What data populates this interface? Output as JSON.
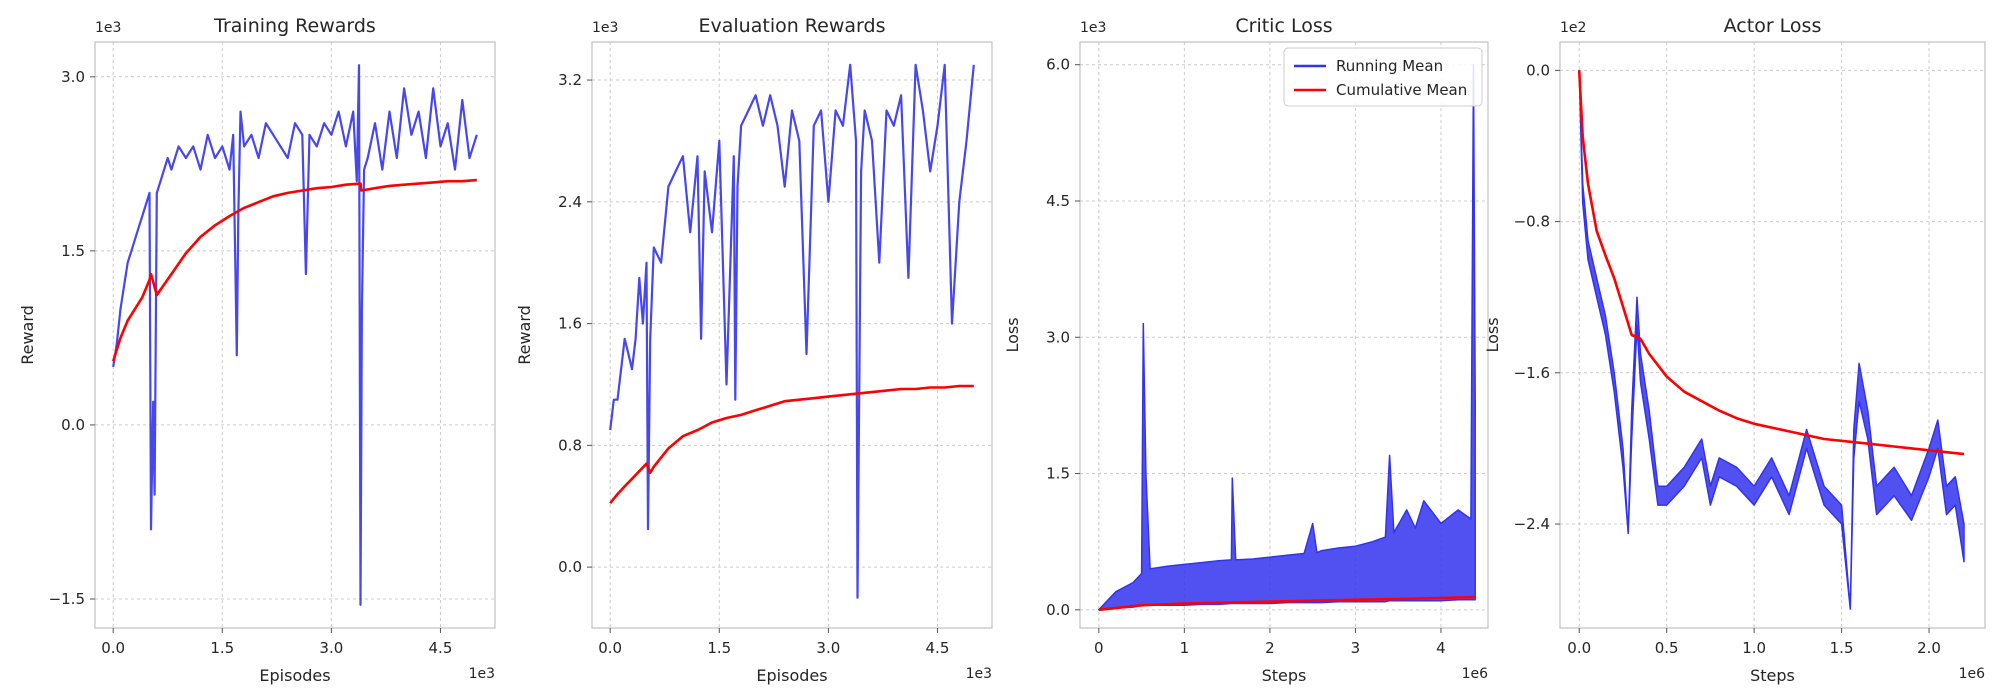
{
  "colors": {
    "running": "#3333ee",
    "cumulative": "#ff0000",
    "grid": "#cccccc",
    "frame": "#c0c0c0"
  },
  "legend": {
    "running": "Running Mean",
    "cumulative": "Cumulative Mean",
    "position": "upper-right of Critic Loss"
  },
  "chart_data": [
    {
      "type": "line",
      "title": "Training Rewards",
      "xlabel": "Episodes",
      "ylabel": "Reward",
      "x_multiplier": "1e3",
      "y_multiplier": "1e3",
      "xlim": [
        -0.25,
        5.25
      ],
      "ylim": [
        -1.75,
        3.3
      ],
      "xticks": [
        0,
        1.5,
        3.0,
        4.5
      ],
      "xtick_labels": [
        "0.0",
        "1.5",
        "3.0",
        "4.5"
      ],
      "yticks": [
        -1.5,
        0,
        1.5,
        3.0
      ],
      "ytick_labels": [
        "−1.5",
        "0.0",
        "1.5",
        "3.0"
      ],
      "grid": true,
      "series": [
        {
          "name": "Running Mean",
          "role": "running",
          "x": [
            0.0,
            0.05,
            0.1,
            0.15,
            0.2,
            0.25,
            0.3,
            0.35,
            0.4,
            0.45,
            0.5,
            0.52,
            0.55,
            0.57,
            0.6,
            0.65,
            0.7,
            0.75,
            0.8,
            0.9,
            1.0,
            1.1,
            1.2,
            1.3,
            1.4,
            1.5,
            1.6,
            1.65,
            1.7,
            1.72,
            1.75,
            1.8,
            1.9,
            2.0,
            2.1,
            2.2,
            2.3,
            2.4,
            2.5,
            2.6,
            2.65,
            2.7,
            2.8,
            2.9,
            3.0,
            3.1,
            3.2,
            3.3,
            3.35,
            3.38,
            3.4,
            3.42,
            3.45,
            3.5,
            3.6,
            3.7,
            3.8,
            3.9,
            4.0,
            4.1,
            4.2,
            4.3,
            4.4,
            4.5,
            4.6,
            4.7,
            4.8,
            4.9,
            5.0
          ],
          "values": [
            0.5,
            0.7,
            1.0,
            1.2,
            1.4,
            1.5,
            1.6,
            1.7,
            1.8,
            1.9,
            2.0,
            -0.9,
            0.2,
            -0.6,
            2.0,
            2.1,
            2.2,
            2.3,
            2.2,
            2.4,
            2.3,
            2.4,
            2.2,
            2.5,
            2.3,
            2.4,
            2.2,
            2.5,
            0.6,
            1.8,
            2.7,
            2.4,
            2.5,
            2.3,
            2.6,
            2.5,
            2.4,
            2.3,
            2.6,
            2.5,
            1.3,
            2.5,
            2.4,
            2.6,
            2.5,
            2.7,
            2.4,
            2.7,
            2.1,
            3.1,
            -1.55,
            1.0,
            2.2,
            2.3,
            2.6,
            2.2,
            2.7,
            2.3,
            2.9,
            2.5,
            2.7,
            2.3,
            2.9,
            2.4,
            2.6,
            2.2,
            2.8,
            2.3,
            2.5
          ]
        },
        {
          "name": "Cumulative Mean",
          "role": "cumulative",
          "x": [
            0.0,
            0.1,
            0.2,
            0.3,
            0.4,
            0.5,
            0.52,
            0.6,
            0.8,
            1.0,
            1.2,
            1.4,
            1.6,
            1.8,
            2.0,
            2.2,
            2.4,
            2.6,
            2.8,
            3.0,
            3.2,
            3.4,
            3.41,
            3.6,
            3.8,
            4.0,
            4.2,
            4.4,
            4.6,
            4.8,
            5.0
          ],
          "values": [
            0.55,
            0.75,
            0.9,
            1.0,
            1.1,
            1.25,
            1.3,
            1.12,
            1.3,
            1.48,
            1.62,
            1.72,
            1.8,
            1.87,
            1.92,
            1.97,
            2.0,
            2.02,
            2.04,
            2.05,
            2.07,
            2.08,
            2.02,
            2.04,
            2.06,
            2.07,
            2.08,
            2.09,
            2.1,
            2.1,
            2.11
          ]
        }
      ]
    },
    {
      "type": "line",
      "title": "Evaluation Rewards",
      "xlabel": "Episodes",
      "ylabel": "Reward",
      "x_multiplier": "1e3",
      "y_multiplier": "1e3",
      "xlim": [
        -0.25,
        5.25
      ],
      "ylim": [
        -0.4,
        3.45
      ],
      "xticks": [
        0,
        1.5,
        3.0,
        4.5
      ],
      "xtick_labels": [
        "0.0",
        "1.5",
        "3.0",
        "4.5"
      ],
      "yticks": [
        0,
        0.8,
        1.6,
        2.4,
        3.2
      ],
      "ytick_labels": [
        "0.0",
        "0.8",
        "1.6",
        "2.4",
        "3.2"
      ],
      "grid": true,
      "series": [
        {
          "name": "Running Mean",
          "role": "running",
          "x": [
            0.0,
            0.05,
            0.1,
            0.15,
            0.2,
            0.25,
            0.3,
            0.35,
            0.4,
            0.45,
            0.5,
            0.52,
            0.55,
            0.6,
            0.7,
            0.8,
            0.9,
            1.0,
            1.1,
            1.2,
            1.25,
            1.3,
            1.4,
            1.5,
            1.6,
            1.7,
            1.72,
            1.75,
            1.8,
            1.9,
            2.0,
            2.1,
            2.2,
            2.3,
            2.4,
            2.5,
            2.6,
            2.7,
            2.8,
            2.9,
            3.0,
            3.1,
            3.2,
            3.3,
            3.38,
            3.4,
            3.45,
            3.5,
            3.6,
            3.7,
            3.8,
            3.9,
            4.0,
            4.1,
            4.2,
            4.3,
            4.4,
            4.5,
            4.6,
            4.7,
            4.8,
            4.9,
            5.0
          ],
          "values": [
            0.9,
            1.1,
            1.1,
            1.3,
            1.5,
            1.4,
            1.3,
            1.5,
            1.9,
            1.6,
            2.0,
            0.25,
            1.5,
            2.1,
            2.0,
            2.5,
            2.6,
            2.7,
            2.2,
            2.7,
            1.5,
            2.6,
            2.2,
            2.8,
            1.2,
            2.7,
            1.1,
            2.5,
            2.9,
            3.0,
            3.1,
            2.9,
            3.1,
            2.9,
            2.5,
            3.0,
            2.8,
            1.4,
            2.9,
            3.0,
            2.4,
            3.0,
            2.9,
            3.3,
            2.8,
            -0.2,
            2.6,
            3.0,
            2.8,
            2.0,
            3.0,
            2.9,
            3.1,
            1.9,
            3.3,
            3.0,
            2.6,
            2.9,
            3.3,
            1.6,
            2.4,
            2.8,
            3.3
          ]
        },
        {
          "name": "Cumulative Mean",
          "role": "cumulative",
          "x": [
            0.0,
            0.1,
            0.2,
            0.3,
            0.4,
            0.5,
            0.55,
            0.6,
            0.8,
            1.0,
            1.2,
            1.4,
            1.6,
            1.8,
            2.0,
            2.2,
            2.4,
            2.6,
            2.8,
            3.0,
            3.2,
            3.4,
            3.6,
            3.8,
            4.0,
            4.2,
            4.4,
            4.6,
            4.8,
            5.0
          ],
          "values": [
            0.42,
            0.48,
            0.53,
            0.58,
            0.63,
            0.68,
            0.62,
            0.66,
            0.78,
            0.86,
            0.9,
            0.95,
            0.98,
            1.0,
            1.03,
            1.06,
            1.09,
            1.1,
            1.11,
            1.12,
            1.13,
            1.14,
            1.15,
            1.16,
            1.17,
            1.17,
            1.18,
            1.18,
            1.19,
            1.19
          ]
        }
      ]
    },
    {
      "type": "line",
      "title": "Critic Loss",
      "xlabel": "Steps",
      "ylabel": "Loss",
      "x_multiplier": "1e6",
      "y_multiplier": "1e3",
      "xlim": [
        -0.22,
        4.55
      ],
      "ylim": [
        -0.2,
        6.25
      ],
      "xticks": [
        0,
        1,
        2,
        3,
        4
      ],
      "xtick_labels": [
        "0",
        "1",
        "2",
        "3",
        "4"
      ],
      "yticks": [
        0,
        1.5,
        3.0,
        4.5,
        6.0
      ],
      "ytick_labels": [
        "0.0",
        "1.5",
        "3.0",
        "4.5",
        "6.0"
      ],
      "grid": true,
      "legend": "upper-right",
      "series": [
        {
          "name": "Running Mean",
          "role": "running",
          "band": true,
          "x": [
            0.0,
            0.2,
            0.4,
            0.5,
            0.52,
            0.55,
            0.6,
            0.8,
            1.0,
            1.2,
            1.4,
            1.55,
            1.56,
            1.6,
            1.8,
            2.0,
            2.2,
            2.4,
            2.5,
            2.55,
            2.6,
            2.8,
            3.0,
            3.2,
            3.35,
            3.4,
            3.45,
            3.6,
            3.7,
            3.8,
            4.0,
            4.2,
            4.35,
            4.38,
            4.4
          ],
          "lower": [
            0.0,
            0.02,
            0.03,
            0.05,
            0.05,
            0.05,
            0.05,
            0.05,
            0.05,
            0.06,
            0.06,
            0.07,
            0.07,
            0.07,
            0.07,
            0.07,
            0.08,
            0.08,
            0.08,
            0.08,
            0.08,
            0.09,
            0.09,
            0.09,
            0.09,
            0.1,
            0.1,
            0.1,
            0.1,
            0.1,
            0.1,
            0.11,
            0.11,
            0.11,
            0.11
          ],
          "values": [
            0.0,
            0.2,
            0.3,
            0.4,
            3.15,
            1.5,
            0.45,
            0.48,
            0.5,
            0.52,
            0.54,
            0.55,
            1.45,
            0.55,
            0.56,
            0.58,
            0.6,
            0.62,
            0.95,
            0.63,
            0.65,
            0.68,
            0.7,
            0.75,
            0.8,
            1.7,
            0.85,
            1.1,
            0.9,
            1.2,
            0.95,
            1.1,
            1.0,
            6.0,
            2.3
          ]
        },
        {
          "name": "Cumulative Mean",
          "role": "cumulative",
          "x": [
            0.0,
            0.5,
            1.0,
            1.5,
            2.0,
            2.5,
            3.0,
            3.5,
            4.0,
            4.4
          ],
          "values": [
            0.0,
            0.05,
            0.07,
            0.08,
            0.09,
            0.1,
            0.11,
            0.12,
            0.13,
            0.14
          ]
        }
      ]
    },
    {
      "type": "line",
      "title": "Actor Loss",
      "xlabel": "Steps",
      "ylabel": "Loss",
      "x_multiplier": "1e6",
      "y_multiplier": "1e2",
      "xlim": [
        -0.11,
        2.32
      ],
      "ylim": [
        -2.95,
        0.15
      ],
      "xticks": [
        0,
        0.5,
        1.0,
        1.5,
        2.0
      ],
      "xtick_labels": [
        "0.0",
        "0.5",
        "1.0",
        "1.5",
        "2.0"
      ],
      "yticks": [
        -2.4,
        -1.6,
        -0.8,
        0
      ],
      "ytick_labels": [
        "−2.4",
        "−1.6",
        "−0.8",
        "0.0"
      ],
      "grid": true,
      "series": [
        {
          "name": "Running Mean",
          "role": "running",
          "band": true,
          "x": [
            0.0,
            0.02,
            0.05,
            0.1,
            0.15,
            0.2,
            0.25,
            0.28,
            0.3,
            0.33,
            0.35,
            0.4,
            0.45,
            0.5,
            0.6,
            0.7,
            0.75,
            0.8,
            0.9,
            1.0,
            1.1,
            1.2,
            1.3,
            1.35,
            1.4,
            1.5,
            1.55,
            1.57,
            1.6,
            1.65,
            1.7,
            1.8,
            1.9,
            2.0,
            2.05,
            2.1,
            2.15,
            2.2
          ],
          "values": [
            0.0,
            -0.6,
            -0.9,
            -1.1,
            -1.3,
            -1.6,
            -2.0,
            -2.45,
            -1.8,
            -1.2,
            -1.5,
            -1.8,
            -2.2,
            -2.2,
            -2.1,
            -1.95,
            -2.2,
            -2.05,
            -2.1,
            -2.2,
            -2.05,
            -2.25,
            -1.9,
            -2.05,
            -2.2,
            -2.3,
            -2.85,
            -1.9,
            -1.55,
            -1.8,
            -2.2,
            -2.1,
            -2.25,
            -2.0,
            -1.85,
            -2.2,
            -2.15,
            -2.4
          ],
          "lower": [
            0.0,
            -0.7,
            -1.0,
            -1.2,
            -1.4,
            -1.7,
            -2.1,
            -2.45,
            -1.95,
            -1.35,
            -1.65,
            -1.95,
            -2.3,
            -2.3,
            -2.2,
            -2.05,
            -2.3,
            -2.15,
            -2.2,
            -2.3,
            -2.15,
            -2.35,
            -2.0,
            -2.15,
            -2.3,
            -2.4,
            -2.85,
            -2.05,
            -1.75,
            -1.95,
            -2.35,
            -2.25,
            -2.38,
            -2.15,
            -2.0,
            -2.35,
            -2.3,
            -2.6
          ]
        },
        {
          "name": "Cumulative Mean",
          "role": "cumulative",
          "x": [
            0.0,
            0.02,
            0.05,
            0.1,
            0.15,
            0.2,
            0.25,
            0.3,
            0.35,
            0.4,
            0.5,
            0.6,
            0.7,
            0.8,
            0.9,
            1.0,
            1.2,
            1.4,
            1.6,
            1.8,
            2.0,
            2.2
          ],
          "values": [
            0.0,
            -0.35,
            -0.6,
            -0.85,
            -0.98,
            -1.1,
            -1.25,
            -1.4,
            -1.42,
            -1.5,
            -1.62,
            -1.7,
            -1.75,
            -1.8,
            -1.84,
            -1.87,
            -1.91,
            -1.95,
            -1.97,
            -1.99,
            -2.01,
            -2.03
          ]
        }
      ]
    }
  ]
}
